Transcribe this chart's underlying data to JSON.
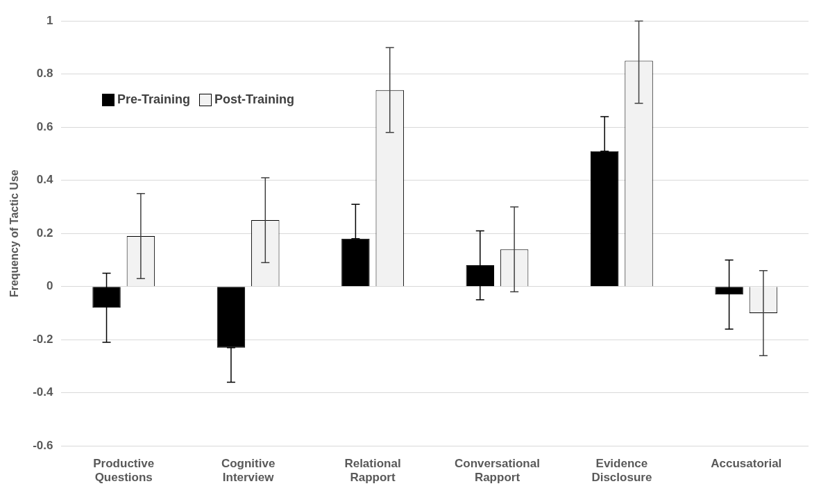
{
  "chart_data": {
    "type": "bar",
    "ylabel": "Frequency of Tactic Use",
    "categories": [
      "Productive Questions",
      "Cognitive Interview",
      "Relational Rapport",
      "Conversational Rapport",
      "Evidence Disclosure",
      "Accusatorial"
    ],
    "series": [
      {
        "name": "Pre-Training",
        "color": "#000000",
        "values": [
          -0.08,
          -0.23,
          0.18,
          0.08,
          0.51,
          -0.03
        ],
        "errors": [
          [
            -0.21,
            0.05
          ],
          [
            -0.36,
            -0.23
          ],
          [
            0.18,
            0.31
          ],
          [
            -0.05,
            0.21
          ],
          [
            0.51,
            0.64
          ],
          [
            -0.16,
            0.1
          ]
        ]
      },
      {
        "name": "Post-Training",
        "color": "#f2f2f2",
        "values": [
          0.19,
          0.25,
          0.74,
          0.14,
          0.85,
          -0.1
        ],
        "errors": [
          [
            0.03,
            0.35
          ],
          [
            0.09,
            0.41
          ],
          [
            0.58,
            0.9
          ],
          [
            -0.02,
            0.3
          ],
          [
            0.69,
            1
          ],
          [
            -0.26,
            0.06
          ]
        ]
      }
    ],
    "ylim": [
      -0.6,
      1
    ],
    "yticks": [
      -0.6,
      -0.4,
      -0.2,
      0,
      0.2,
      0.4,
      0.6,
      0.8,
      1
    ],
    "grid": "y",
    "legend": "top left"
  }
}
